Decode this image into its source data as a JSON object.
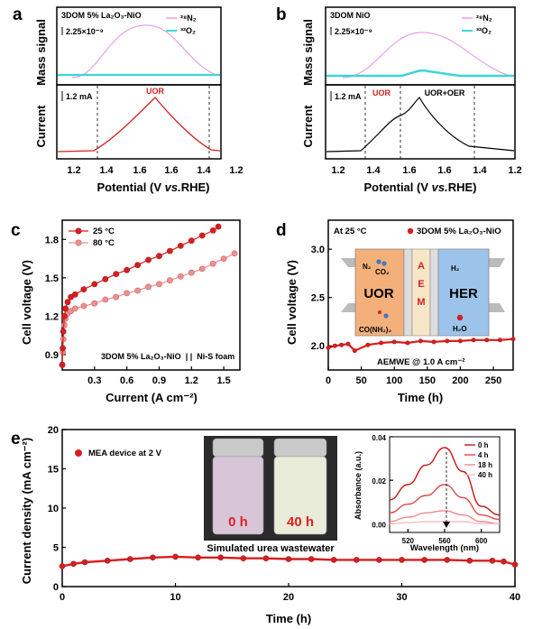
{
  "panels": {
    "a": {
      "label": "a",
      "sample": "3DOM 5% La₂O₃-NiO",
      "legend": [
        "²⁸N₂",
        "³²O₂"
      ],
      "top_ylabel": "Mass signal",
      "bottom_ylabel": "Current",
      "ms_scale": "2.25×10⁻⁹",
      "cur_scale": "1.2 mA",
      "annotations": [
        "UOR"
      ],
      "xlabel_pre": "Potential (V ",
      "xlabel_it": "vs.",
      "xlabel_post": "RHE)",
      "xticks": [
        "1.2",
        "1.4",
        "1.6",
        "1.6",
        "1.4",
        "1.2"
      ]
    },
    "b": {
      "label": "b",
      "sample": "3DOM NiO",
      "legend": [
        "²⁸N₂",
        "³²O₂"
      ],
      "top_ylabel": "Mass signal",
      "bottom_ylabel": "Current",
      "ms_scale": "2.25×10⁻⁹",
      "cur_scale": "1.2 mA",
      "annotations": [
        "UOR",
        "UOR+OER"
      ],
      "xlabel_pre": "Potential (V ",
      "xlabel_it": "vs.",
      "xlabel_post": "RHE)",
      "xticks": [
        "1.2",
        "1.4",
        "1.6",
        "1.6",
        "1.4",
        "1.2"
      ]
    },
    "c": {
      "label": "c",
      "ylabel": "Cell voltage (V)",
      "xlabel": "Current (A cm⁻²)",
      "catalyst": "3DOM 5% La₂O₃-NiO",
      "separator": "| |",
      "counter": "Ni-S foam",
      "yticks": [
        "0.9",
        "1.2",
        "1.5",
        "1.8"
      ],
      "xticks": [
        "0.3",
        "0.6",
        "0.9",
        "1.2",
        "1.5"
      ]
    },
    "d": {
      "label": "d",
      "ylabel": "Cell voltage (V)",
      "xlabel": "Time (h)",
      "temp": "At 25 °C",
      "legend": "3DOM 5% La₂O₃-NiO",
      "condition": "AEMWE @ 1.0 A cm⁻²",
      "yticks": [
        "2.0",
        "2.5",
        "3.0"
      ],
      "xticks": [
        "0",
        "50",
        "100",
        "150",
        "200",
        "250"
      ],
      "schematic": {
        "left": "UOR",
        "right": "HER",
        "membrane": [
          "A",
          "E",
          "M"
        ],
        "n2": "N₂",
        "co2": "CO₂",
        "urea": "CO(NH₂)₂",
        "h2": "H₂",
        "h2o": "H₂O"
      }
    },
    "e": {
      "label": "e",
      "ylabel": "Current density (mA cm⁻²)",
      "xlabel": "Time (h)",
      "legend": "MEA device at 2 V",
      "yticks": [
        "0",
        "5",
        "10",
        "15",
        "20"
      ],
      "xticks": [
        "0",
        "10",
        "20",
        "30",
        "40"
      ],
      "photo": {
        "left": "0 h",
        "right": "40 h",
        "caption": "Simulated urea wastewater"
      },
      "inset": {
        "ylabel": "Absorbance (a.u.)",
        "xlabel": "Wavelength (nm)",
        "yticks": [
          "0.00",
          "0.02",
          "0.04"
        ],
        "xticks": [
          "520",
          "560",
          "600"
        ],
        "legend": [
          "0 h",
          "4 h",
          "18 h",
          "40 h"
        ]
      }
    }
  },
  "colors": {
    "red": "#d42020",
    "red_light": "#ef9090",
    "pink": "#e8a0e8",
    "cyan": "#3cd6d6",
    "black": "#000000"
  },
  "chart_data": [
    {
      "type": "line",
      "panel": "c",
      "xlabel": "Current (A cm⁻²)",
      "ylabel": "Cell voltage (V)",
      "xlim": [
        0,
        1.65
      ],
      "ylim": [
        0.78,
        1.95
      ],
      "series": [
        {
          "name": "25 °C",
          "x": [
            0,
            0.005,
            0.01,
            0.02,
            0.03,
            0.05,
            0.08,
            0.12,
            0.2,
            0.3,
            0.4,
            0.5,
            0.6,
            0.7,
            0.8,
            0.9,
            1.0,
            1.1,
            1.2,
            1.3,
            1.4,
            1.45
          ],
          "y": [
            0.82,
            0.95,
            1.08,
            1.2,
            1.26,
            1.31,
            1.35,
            1.37,
            1.41,
            1.45,
            1.49,
            1.53,
            1.56,
            1.6,
            1.64,
            1.67,
            1.71,
            1.75,
            1.79,
            1.83,
            1.87,
            1.9
          ]
        },
        {
          "name": "80 °C",
          "x": [
            0,
            0.005,
            0.01,
            0.02,
            0.03,
            0.05,
            0.08,
            0.12,
            0.2,
            0.3,
            0.4,
            0.5,
            0.6,
            0.7,
            0.8,
            0.9,
            1.0,
            1.1,
            1.2,
            1.3,
            1.4,
            1.5,
            1.6
          ],
          "y": [
            0.82,
            0.92,
            1.02,
            1.13,
            1.18,
            1.22,
            1.24,
            1.26,
            1.28,
            1.3,
            1.33,
            1.35,
            1.38,
            1.4,
            1.43,
            1.45,
            1.48,
            1.51,
            1.54,
            1.57,
            1.61,
            1.65,
            1.69
          ]
        }
      ]
    },
    {
      "type": "line",
      "panel": "d",
      "xlabel": "Time (h)",
      "ylabel": "Cell voltage (V)",
      "xlim": [
        0,
        280
      ],
      "ylim": [
        1.75,
        3.3
      ],
      "series": [
        {
          "name": "3DOM 5% La₂O₃-NiO",
          "x": [
            0,
            10,
            20,
            30,
            40,
            60,
            80,
            100,
            120,
            140,
            160,
            180,
            200,
            220,
            240,
            260,
            280
          ],
          "y": [
            1.98,
            2.0,
            2.01,
            2.02,
            1.95,
            2.01,
            2.03,
            2.04,
            2.03,
            2.05,
            2.04,
            2.05,
            2.05,
            2.06,
            2.06,
            2.06,
            2.07
          ]
        }
      ]
    },
    {
      "type": "line",
      "panel": "e",
      "xlabel": "Time (h)",
      "ylabel": "Current density (mA cm⁻²)",
      "xlim": [
        0,
        40
      ],
      "ylim": [
        0,
        20
      ],
      "series": [
        {
          "name": "MEA device at 2 V",
          "x": [
            0,
            1,
            2,
            4,
            6,
            8,
            10,
            12,
            14,
            16,
            18,
            20,
            22,
            24,
            26,
            28,
            30,
            32,
            34,
            36,
            38,
            39,
            40
          ],
          "y": [
            2.6,
            2.9,
            3.1,
            3.3,
            3.5,
            3.7,
            3.8,
            3.7,
            3.7,
            3.6,
            3.6,
            3.5,
            3.5,
            3.4,
            3.4,
            3.4,
            3.4,
            3.4,
            3.4,
            3.3,
            3.3,
            3.2,
            2.8
          ]
        }
      ]
    },
    {
      "type": "line",
      "panel": "e-inset",
      "xlabel": "Wavelength (nm)",
      "ylabel": "Absorbance (a.u.)",
      "xlim": [
        500,
        620
      ],
      "ylim": [
        -0.004,
        0.04
      ],
      "series": [
        {
          "name": "0 h",
          "x": [
            500,
            520,
            540,
            560,
            580,
            600,
            620
          ],
          "y": [
            0.011,
            0.018,
            0.027,
            0.035,
            0.024,
            0.008,
            0.004
          ]
        },
        {
          "name": "4 h",
          "x": [
            500,
            520,
            540,
            560,
            580,
            600,
            620
          ],
          "y": [
            0.005,
            0.009,
            0.013,
            0.018,
            0.012,
            0.004,
            0.002
          ]
        },
        {
          "name": "18 h",
          "x": [
            500,
            520,
            540,
            560,
            580,
            600,
            620
          ],
          "y": [
            0.001,
            0.003,
            0.005,
            0.006,
            0.004,
            0.001,
            0.0
          ]
        },
        {
          "name": "40 h",
          "x": [
            500,
            520,
            540,
            560,
            580,
            600,
            620
          ],
          "y": [
            0.0,
            0.0005,
            0.001,
            0.001,
            0.001,
            0.0,
            0.0
          ]
        }
      ]
    }
  ]
}
